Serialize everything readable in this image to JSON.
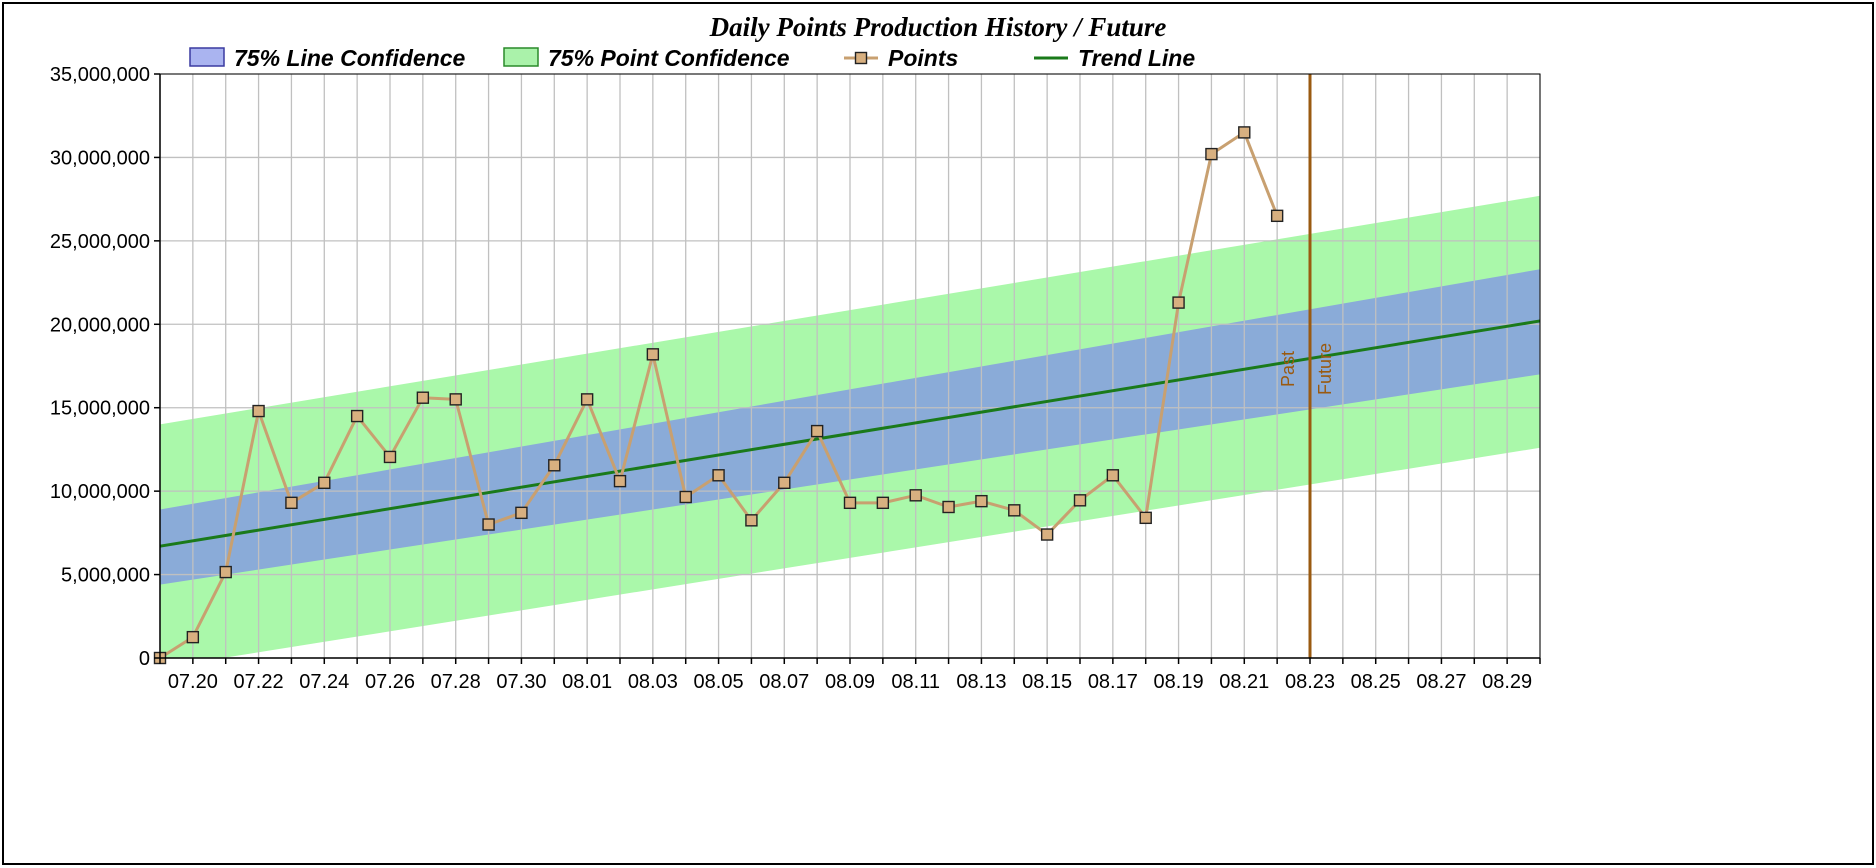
{
  "chart_data": {
    "type": "line",
    "title": "Daily Points Production History / Future",
    "legend": {
      "placement": "top",
      "items": [
        {
          "label": "75% Line Confidence",
          "kind": "box",
          "color": "#aab4f0",
          "border": "#3a3aa0"
        },
        {
          "label": "75% Point Confidence",
          "kind": "box",
          "color": "#aaf2aa",
          "border": "#2a8a2a"
        },
        {
          "label": "Points",
          "kind": "line-marker",
          "color": "#c8a070"
        },
        {
          "label": "Trend Line",
          "kind": "line",
          "color": "#1a7a1a"
        }
      ]
    },
    "x_tick_labels": [
      "07.20",
      "07.22",
      "07.24",
      "07.26",
      "07.28",
      "07.30",
      "08.01",
      "08.03",
      "08.05",
      "08.07",
      "08.09",
      "08.11",
      "08.13",
      "08.15",
      "08.17",
      "08.19",
      "08.21",
      "08.23",
      "08.25",
      "08.27",
      "08.29"
    ],
    "x_days": [
      "07.19",
      "07.20",
      "07.21",
      "07.22",
      "07.23",
      "07.24",
      "07.25",
      "07.26",
      "07.27",
      "07.28",
      "07.29",
      "07.30",
      "07.31",
      "08.01",
      "08.02",
      "08.03",
      "08.04",
      "08.05",
      "08.06",
      "08.07",
      "08.08",
      "08.09",
      "08.10",
      "08.11",
      "08.12",
      "08.13",
      "08.14",
      "08.15",
      "08.16",
      "08.17",
      "08.18",
      "08.19",
      "08.20",
      "08.21",
      "08.22",
      "08.23",
      "08.24",
      "08.25",
      "08.26",
      "08.27",
      "08.28",
      "08.29",
      "08.30"
    ],
    "y_tick_labels": [
      "0",
      "5,000,000",
      "10,000,000",
      "15,000,000",
      "20,000,000",
      "25,000,000",
      "30,000,000",
      "35,000,000"
    ],
    "ylim": [
      0,
      35000000
    ],
    "grid": true,
    "series": [
      {
        "name": "Points",
        "color": "#c8a070",
        "x": [
          "07.19",
          "07.20",
          "07.21",
          "07.22",
          "07.23",
          "07.24",
          "07.25",
          "07.26",
          "07.27",
          "07.28",
          "07.29",
          "07.30",
          "07.31",
          "08.01",
          "08.02",
          "08.03",
          "08.04",
          "08.05",
          "08.06",
          "08.07",
          "08.08",
          "08.09",
          "08.10",
          "08.11",
          "08.12",
          "08.13",
          "08.14",
          "08.15",
          "08.16",
          "08.17",
          "08.18",
          "08.19",
          "08.20",
          "08.21",
          "08.22"
        ],
        "values": [
          0,
          1250000,
          5150000,
          14800000,
          9300000,
          10500000,
          14500000,
          12050000,
          15600000,
          15500000,
          8000000,
          8700000,
          11550000,
          15500000,
          10600000,
          18200000,
          9650000,
          10950000,
          8250000,
          10500000,
          13600000,
          9300000,
          9300000,
          9750000,
          9050000,
          9400000,
          8850000,
          7400000,
          9450000,
          10950000,
          8400000,
          21300000,
          30200000,
          31500000,
          26500000
        ]
      },
      {
        "name": "Trend Line",
        "color": "#1a7a1a",
        "x": [
          "07.19",
          "08.30"
        ],
        "values": [
          6700000,
          20200000
        ]
      }
    ],
    "bands": [
      {
        "name": "75% Point Confidence",
        "color": "#aaf8aa",
        "x": [
          "07.19",
          "08.30"
        ],
        "upper": [
          14000000,
          27700000
        ],
        "lower": [
          -600000,
          12600000
        ]
      },
      {
        "name": "75% Line Confidence",
        "color": "#8aabd8",
        "x": [
          "07.19",
          "08.30"
        ],
        "upper": [
          8900000,
          23300000
        ],
        "lower": [
          4400000,
          17000000
        ]
      }
    ],
    "marker_line": {
      "x": "08.23",
      "labels": [
        "Past",
        "Future"
      ],
      "color": "#9a5a10"
    }
  }
}
